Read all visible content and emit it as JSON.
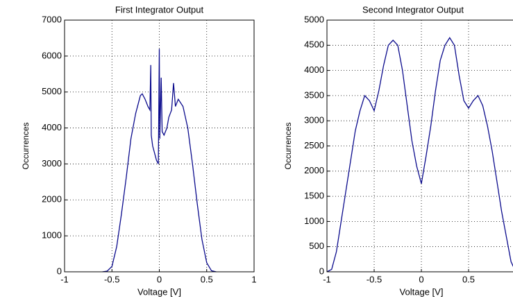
{
  "chart_data": [
    {
      "type": "line",
      "title": "First Integrator Output",
      "xlabel": "Voltage [V]",
      "ylabel": "Occurrences",
      "color": "#0a0a8c",
      "grid": true,
      "xlim": [
        -1,
        1
      ],
      "xticks": [
        -1,
        -0.5,
        0,
        0.5,
        1
      ],
      "ylim": [
        0,
        7000
      ],
      "yticks": [
        0,
        1000,
        2000,
        3000,
        4000,
        5000,
        6000,
        7000
      ],
      "x": [
        -0.6,
        -0.55,
        -0.5,
        -0.45,
        -0.4,
        -0.35,
        -0.3,
        -0.25,
        -0.2,
        -0.18,
        -0.15,
        -0.12,
        -0.1,
        -0.09,
        -0.085,
        -0.07,
        -0.05,
        -0.03,
        -0.01,
        0,
        0.005,
        0.02,
        0.03,
        0.05,
        0.08,
        0.1,
        0.13,
        0.15,
        0.17,
        0.2,
        0.25,
        0.3,
        0.35,
        0.4,
        0.45,
        0.5,
        0.55,
        0.6
      ],
      "values": [
        0,
        20,
        150,
        700,
        1600,
        2600,
        3700,
        4400,
        4900,
        4950,
        4800,
        4600,
        4500,
        5750,
        3800,
        3500,
        3300,
        3100,
        3000,
        6200,
        3700,
        5400,
        3900,
        3800,
        4000,
        4300,
        4500,
        5250,
        4600,
        4800,
        4600,
        4000,
        3000,
        1900,
        900,
        250,
        30,
        0
      ]
    },
    {
      "type": "line",
      "title": "Second Integrator Output",
      "xlabel": "Voltage [V]",
      "ylabel": "Occurrences",
      "color": "#0a0a8c",
      "grid": true,
      "xlim": [
        -1,
        1
      ],
      "xticks": [
        -1,
        -0.5,
        0,
        0.5
      ],
      "ylim": [
        0,
        5000
      ],
      "yticks": [
        0,
        500,
        1000,
        1500,
        2000,
        2500,
        3000,
        3500,
        4000,
        4500,
        5000
      ],
      "x": [
        -1,
        -0.95,
        -0.9,
        -0.85,
        -0.8,
        -0.75,
        -0.7,
        -0.65,
        -0.6,
        -0.55,
        -0.5,
        -0.45,
        -0.4,
        -0.35,
        -0.3,
        -0.25,
        -0.2,
        -0.15,
        -0.1,
        -0.05,
        0,
        0.05,
        0.1,
        0.15,
        0.2,
        0.25,
        0.3,
        0.35,
        0.4,
        0.45,
        0.5,
        0.55,
        0.6,
        0.65,
        0.7,
        0.75,
        0.8,
        0.85,
        0.9,
        0.95,
        1
      ],
      "values": [
        0,
        50,
        400,
        1000,
        1600,
        2200,
        2800,
        3200,
        3500,
        3400,
        3200,
        3600,
        4100,
        4500,
        4600,
        4500,
        4000,
        3300,
        2600,
        2100,
        1750,
        2300,
        2900,
        3600,
        4200,
        4500,
        4650,
        4500,
        3900,
        3400,
        3250,
        3400,
        3500,
        3300,
        2900,
        2400,
        1800,
        1200,
        700,
        200,
        0
      ]
    }
  ]
}
